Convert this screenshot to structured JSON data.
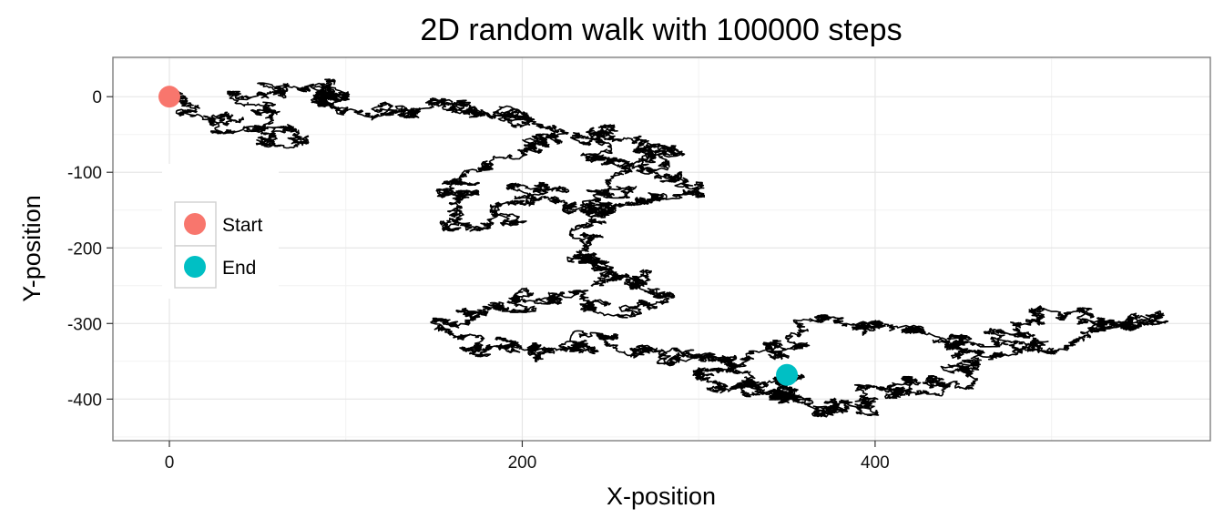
{
  "chart_data": {
    "type": "line",
    "title": "2D random walk with 100000 steps",
    "xlabel": "X-position",
    "ylabel": "Y-position",
    "xlim": [
      -32,
      590
    ],
    "ylim": [
      -455,
      52
    ],
    "x_ticks": [
      0,
      200,
      400
    ],
    "x_tick_labels": [
      "0",
      "200",
      "400"
    ],
    "y_ticks": [
      0,
      -100,
      -200,
      -300,
      -400
    ],
    "y_tick_labels": [
      "0",
      "-100",
      "-200",
      "-300",
      "-400"
    ],
    "grid": true,
    "legend_position": "left",
    "path_color": "#000000",
    "waypoints": [
      [
        0,
        0
      ],
      [
        10,
        -10
      ],
      [
        30,
        -25
      ],
      [
        50,
        -40
      ],
      [
        55,
        -60
      ],
      [
        70,
        -45
      ],
      [
        60,
        -20
      ],
      [
        40,
        0
      ],
      [
        60,
        5
      ],
      [
        90,
        10
      ],
      [
        100,
        0
      ],
      [
        85,
        -10
      ],
      [
        100,
        -20
      ],
      [
        130,
        -15
      ],
      [
        150,
        -10
      ],
      [
        160,
        -15
      ],
      [
        175,
        -20
      ],
      [
        200,
        -20
      ],
      [
        210,
        -40
      ],
      [
        215,
        -60
      ],
      [
        205,
        -70
      ],
      [
        180,
        -90
      ],
      [
        160,
        -110
      ],
      [
        165,
        -130
      ],
      [
        160,
        -150
      ],
      [
        170,
        -175
      ],
      [
        195,
        -165
      ],
      [
        200,
        -140
      ],
      [
        215,
        -120
      ],
      [
        220,
        -140
      ],
      [
        240,
        -150
      ],
      [
        250,
        -130
      ],
      [
        260,
        -100
      ],
      [
        275,
        -80
      ],
      [
        285,
        -70
      ],
      [
        270,
        -60
      ],
      [
        250,
        -40
      ],
      [
        230,
        -50
      ],
      [
        240,
        -80
      ],
      [
        260,
        -90
      ],
      [
        285,
        -110
      ],
      [
        290,
        -125
      ],
      [
        270,
        -140
      ],
      [
        250,
        -150
      ],
      [
        245,
        -165
      ],
      [
        240,
        -190
      ],
      [
        235,
        -215
      ],
      [
        245,
        -225
      ],
      [
        250,
        -245
      ],
      [
        265,
        -240
      ],
      [
        285,
        -260
      ],
      [
        270,
        -275
      ],
      [
        240,
        -280
      ],
      [
        220,
        -265
      ],
      [
        200,
        -255
      ],
      [
        185,
        -280
      ],
      [
        170,
        -290
      ],
      [
        160,
        -300
      ],
      [
        165,
        -320
      ],
      [
        180,
        -335
      ],
      [
        195,
        -325
      ],
      [
        210,
        -345
      ],
      [
        230,
        -330
      ],
      [
        250,
        -320
      ],
      [
        270,
        -335
      ],
      [
        285,
        -350
      ],
      [
        300,
        -345
      ],
      [
        315,
        -360
      ],
      [
        310,
        -380
      ],
      [
        335,
        -390
      ],
      [
        350,
        -385
      ],
      [
        355,
        -400
      ],
      [
        365,
        -420
      ],
      [
        375,
        -410
      ],
      [
        395,
        -405
      ],
      [
        410,
        -390
      ],
      [
        420,
        -375
      ],
      [
        430,
        -390
      ],
      [
        440,
        -380
      ],
      [
        450,
        -360
      ],
      [
        460,
        -340
      ],
      [
        450,
        -320
      ],
      [
        470,
        -310
      ],
      [
        490,
        -295
      ],
      [
        510,
        -290
      ],
      [
        530,
        -300
      ],
      [
        550,
        -290
      ],
      [
        560,
        -285
      ],
      [
        540,
        -305
      ],
      [
        515,
        -320
      ],
      [
        495,
        -330
      ],
      [
        470,
        -340
      ],
      [
        445,
        -330
      ],
      [
        420,
        -310
      ],
      [
        400,
        -300
      ],
      [
        380,
        -295
      ],
      [
        360,
        -310
      ],
      [
        345,
        -330
      ],
      [
        330,
        -345
      ],
      [
        320,
        -360
      ],
      [
        330,
        -380
      ],
      [
        345,
        -375
      ],
      [
        350,
        -368
      ]
    ],
    "series": [
      {
        "name": "Start",
        "color": "#F8766D",
        "points": [
          [
            0,
            0
          ]
        ]
      },
      {
        "name": "End",
        "color": "#00BFC4",
        "points": [
          [
            350,
            -368
          ]
        ]
      }
    ]
  }
}
